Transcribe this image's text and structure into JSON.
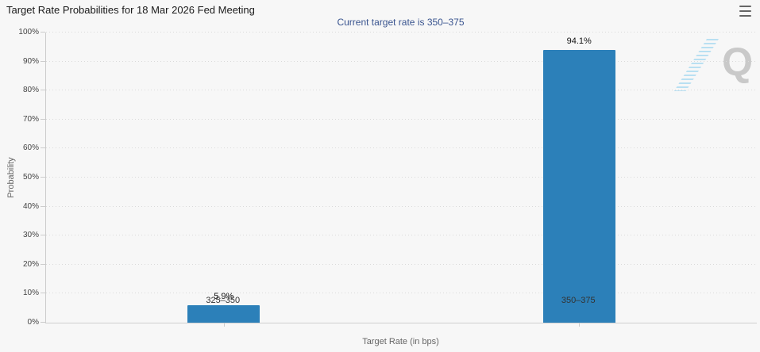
{
  "header": {
    "title": "Target Rate Probabilities for 18 Mar 2026 Fed Meeting",
    "subtitle": "Current target rate is 350–375"
  },
  "watermark": {
    "letter": "Q"
  },
  "chart_data": {
    "type": "bar",
    "title": "Target Rate Probabilities for 18 Mar 2026 Fed Meeting",
    "subtitle": "Current target rate is 350–375",
    "categories": [
      "325–350",
      "350–375"
    ],
    "values": [
      5.9,
      94.1
    ],
    "value_labels": [
      "5.9%",
      "94.1%"
    ],
    "xlabel": "Target Rate (in bps)",
    "ylabel": "Probability",
    "ylim": [
      0,
      100
    ],
    "yticks": [
      0,
      10,
      20,
      30,
      40,
      50,
      60,
      70,
      80,
      90,
      100
    ],
    "ytick_labels": [
      "0%",
      "10%",
      "20%",
      "30%",
      "40%",
      "50%",
      "60%",
      "70%",
      "80%",
      "90%",
      "100%"
    ],
    "grid": "dotted-horizontal",
    "legend": "none",
    "bar_color": "#2c80b9",
    "colors": {
      "background": "#f7f7f7",
      "subtitle": "#39548f",
      "axis_line": "#cccccc",
      "grid_dot": "#dadada",
      "watermark_q": "#c9c9c9",
      "watermark_stripes": "#b2ddf1"
    }
  }
}
